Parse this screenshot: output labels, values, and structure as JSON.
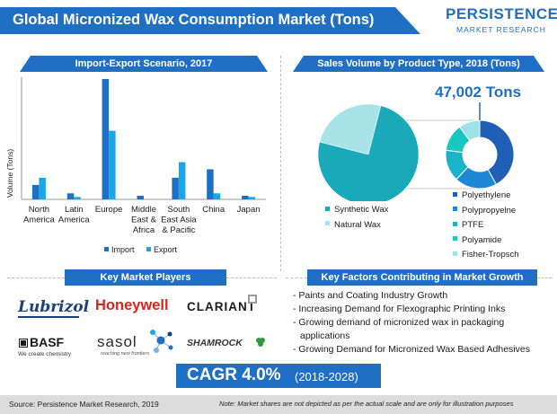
{
  "header": {
    "title": "Global Micronized Wax Consumption Market (Tons)",
    "logo_main": "PERSISTENCE",
    "logo_sub": "MARKET RESEARCH"
  },
  "sections": {
    "import_export": "Import-Export Scenario, 2017",
    "sales_volume": "Sales Volume by Product Type, 2018 (Tons)",
    "key_players": "Key Market Players",
    "key_factors": "Key Factors Contributing in Market Growth"
  },
  "colors": {
    "brand_blue": "#1f6fc5",
    "import": "#1f6fc5",
    "export": "#1aa7e8"
  },
  "chart_data": [
    {
      "type": "bar",
      "title": "Import-Export Scenario, 2017",
      "ylabel": "Volume (Tons)",
      "xlabel": "",
      "categories": [
        [
          "North",
          "America"
        ],
        [
          "Latin",
          "America"
        ],
        [
          "Europe"
        ],
        [
          "Middle",
          "East &",
          "Africa"
        ],
        [
          "South",
          "East Asia",
          "& Pacific"
        ],
        [
          "China"
        ],
        [
          "Japan"
        ]
      ],
      "series": [
        {
          "name": "Import",
          "color": "#1f6fc5",
          "values": [
            12,
            5,
            100,
            3,
            18,
            25,
            3
          ]
        },
        {
          "name": "Export",
          "color": "#1aa7e8",
          "values": [
            18,
            2,
            57,
            0,
            31,
            5,
            2
          ]
        }
      ],
      "ylim": [
        0,
        100
      ],
      "grid": false,
      "legend": "bottom"
    },
    {
      "type": "pie",
      "title": "Sales Volume by Product Type, 2018 (Tons)",
      "total_label": "47,002 Tons",
      "slices": [
        {
          "name": "Synthetic Wax",
          "value": 75,
          "color": "#1aa9b9"
        },
        {
          "name": "Natural Wax",
          "value": 25,
          "color": "#a8e3ea"
        }
      ],
      "breakdown_of": "Synthetic Wax",
      "breakdown": [
        {
          "name": "Polyethylene",
          "value": 42,
          "color": "#1f5fb5"
        },
        {
          "name": "Polypropyelne",
          "value": 20,
          "color": "#1e88d6"
        },
        {
          "name": "PTFE",
          "value": 15,
          "color": "#19b4c9"
        },
        {
          "name": "Polyamide",
          "value": 13,
          "color": "#17c7c0"
        },
        {
          "name": "Fisher-Tropsch",
          "value": 10,
          "color": "#9fe2e6"
        }
      ]
    }
  ],
  "legend": {
    "import": "Import",
    "export": "Export"
  },
  "players": {
    "lubrizol": "Lubrizol",
    "honeywell": "Honeywell",
    "clariant": "CLARIANT",
    "basf": "BASF",
    "basf_tag": "We create chemistry",
    "sasol": "sasol",
    "sasol_tag": "reaching new frontiers",
    "shamrock": "SHAMROCK"
  },
  "factors": [
    "- Paints and Coating Industry Growth",
    "- Increasing Demand for Flexographic Printing Inks",
    "- Growing demand of micronized wax in packaging applications",
    "- Growing Demand for Micronized Wax Based Adhesives"
  ],
  "cagr": {
    "main": "CAGR 4.0%",
    "period": "(2018-2028)"
  },
  "footer": {
    "source": "Source: Persistence Market Research, 2019",
    "note": "Note: Market shares are not depicted as per the actual scale and are only for illustration purposes"
  }
}
